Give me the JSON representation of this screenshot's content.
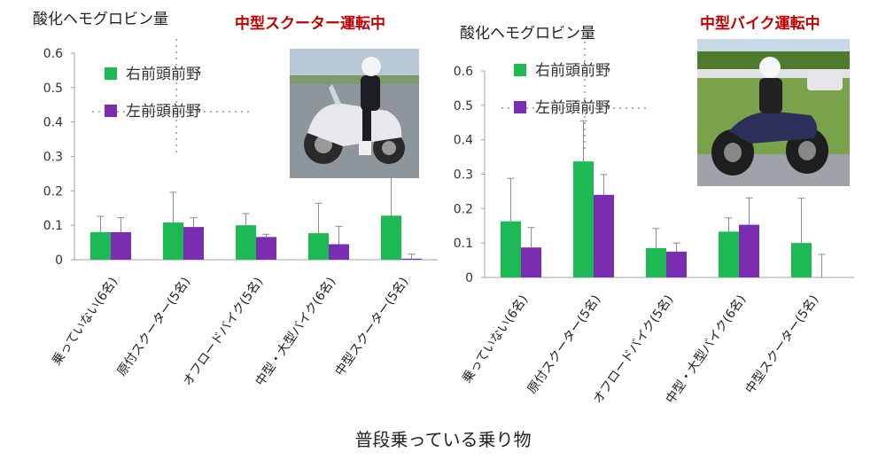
{
  "xlabel": "普段乗っている乗り物",
  "colors": {
    "right": "#1db954",
    "left": "#7a2db0",
    "axis": "#a0a0a0",
    "error": "#8c8c8c",
    "tag": "#c00000"
  },
  "chart_data": [
    {
      "type": "bar",
      "title": "酸化ヘモグロビン量",
      "tag": "中型スクーター運転中",
      "ylim": [
        0,
        0.6
      ],
      "yticks": [
        "0",
        "0.1",
        "0.2",
        "0.3",
        "0.4",
        "0.5",
        "0.6"
      ],
      "grid": false,
      "legend_placement": "top-left",
      "categories": [
        "乗っていない(6名)",
        "原付スクーター(5名)",
        "オフロードバイク(5名)",
        "中型・大型バイク(6名)",
        "中型スクーター(5名)"
      ],
      "series": [
        {
          "name": "右前頭前野",
          "values": [
            0.08,
            0.108,
            0.1,
            0.077,
            0.128
          ],
          "error": [
            0.046,
            0.088,
            0.034,
            0.087,
            0.132
          ]
        },
        {
          "name": "左前頭前野",
          "values": [
            0.08,
            0.095,
            0.066,
            0.045,
            0.003
          ],
          "error": [
            0.042,
            0.027,
            0.008,
            0.052,
            0.013
          ]
        }
      ]
    },
    {
      "type": "bar",
      "title": "酸化ヘモグロビン量",
      "tag": "中型バイク運転中",
      "ylim": [
        0,
        0.6
      ],
      "yticks": [
        "0",
        "0.1",
        "0.2",
        "0.3",
        "0.4",
        "0.5",
        "0.6"
      ],
      "grid": false,
      "legend_placement": "top-left",
      "categories": [
        "乗っていない(6名)",
        "原付スクーター(5名)",
        "オフロードバイク(5名)",
        "中型・大型バイク(6名)",
        "中型スクーター(5名)"
      ],
      "series": [
        {
          "name": "右前頭前野",
          "values": [
            0.163,
            0.337,
            0.085,
            0.133,
            0.1
          ],
          "error": [
            0.125,
            0.118,
            0.057,
            0.04,
            0.13
          ]
        },
        {
          "name": "左前頭前野",
          "values": [
            0.087,
            0.24,
            0.075,
            0.153,
            0.0
          ],
          "error": [
            0.058,
            0.059,
            0.025,
            0.078,
            0.067
          ]
        }
      ]
    }
  ]
}
